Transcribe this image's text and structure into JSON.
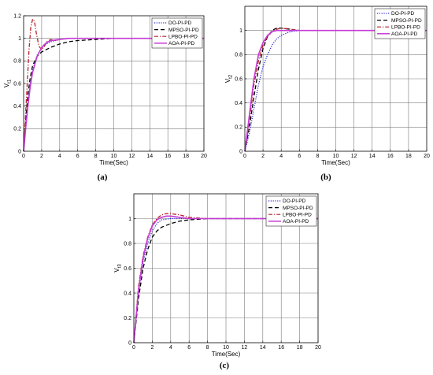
{
  "chart_data": [
    {
      "type": "line",
      "caption": "(a)",
      "xlabel": "Time(Sec)",
      "ylabel": "V_t1",
      "xlim": [
        0,
        20
      ],
      "ylim": [
        0,
        1.2
      ],
      "xticks": [
        0,
        2,
        4,
        6,
        8,
        10,
        12,
        14,
        16,
        18,
        20
      ],
      "yticks": [
        0,
        0.2,
        0.4,
        0.6,
        0.8,
        1,
        1.2
      ],
      "legend_position": "top-right",
      "series": [
        {
          "name": "DO-PI-PD",
          "color": "#2b2bd9",
          "style": "dotted",
          "x": [
            0,
            0.25,
            0.5,
            0.75,
            1,
            1.5,
            2,
            2.5,
            3,
            4,
            5,
            6,
            8,
            10,
            14,
            20
          ],
          "y": [
            0,
            0.25,
            0.45,
            0.6,
            0.72,
            0.85,
            0.91,
            0.95,
            0.97,
            0.99,
            1.0,
            1.0,
            1.0,
            1.0,
            1.0,
            1.0
          ]
        },
        {
          "name": "MPSO-PI-PD",
          "color": "#000000",
          "style": "dashed",
          "x": [
            0,
            0.25,
            0.5,
            0.75,
            1,
            1.5,
            2,
            3,
            4,
            5,
            6,
            8,
            10,
            14,
            20
          ],
          "y": [
            0,
            0.3,
            0.52,
            0.66,
            0.76,
            0.84,
            0.88,
            0.92,
            0.95,
            0.97,
            0.98,
            0.99,
            1.0,
            1.0,
            1.0
          ]
        },
        {
          "name": "LPBO-PI-PD",
          "color": "#b5202a",
          "style": "dashdot",
          "x": [
            0,
            0.3,
            0.6,
            0.8,
            1.0,
            1.2,
            1.4,
            1.7,
            2.0,
            2.3,
            2.6,
            3.0,
            3.5,
            4,
            5,
            6,
            8,
            10,
            14,
            20
          ],
          "y": [
            0,
            0.45,
            0.9,
            1.1,
            1.17,
            1.15,
            1.05,
            0.93,
            0.9,
            0.93,
            0.97,
            0.99,
            0.98,
            0.99,
            1.0,
            1.0,
            1.0,
            1.0,
            1.0,
            1.0
          ]
        },
        {
          "name": "AOA-PI-PD",
          "color": "#c63bd6",
          "style": "solid",
          "x": [
            0,
            0.25,
            0.5,
            0.75,
            1,
            1.5,
            2,
            2.5,
            3,
            4,
            5,
            6,
            8,
            10,
            14,
            20
          ],
          "y": [
            0,
            0.22,
            0.42,
            0.58,
            0.7,
            0.84,
            0.92,
            0.96,
            0.98,
            0.99,
            1.0,
            1.0,
            1.0,
            1.0,
            1.0,
            1.0
          ]
        }
      ]
    },
    {
      "type": "line",
      "caption": "(b)",
      "xlabel": "Time(Sec)",
      "ylabel": "V_t2",
      "xlim": [
        0,
        20
      ],
      "ylim": [
        0,
        1.2
      ],
      "xticks": [
        0,
        2,
        4,
        6,
        8,
        10,
        12,
        14,
        16,
        18,
        20
      ],
      "yticks": [
        0,
        0.2,
        0.4,
        0.6,
        0.8,
        1
      ],
      "legend_position": "top-right",
      "series": [
        {
          "name": "DO-PI-PD",
          "color": "#2b2bd9",
          "style": "dotted",
          "x": [
            0,
            0.5,
            1,
            1.5,
            2,
            2.5,
            3,
            3.5,
            4,
            5,
            6,
            8,
            10,
            14,
            20
          ],
          "y": [
            0,
            0.15,
            0.35,
            0.55,
            0.7,
            0.8,
            0.88,
            0.93,
            0.96,
            0.99,
            1.0,
            1.0,
            1.0,
            1.0,
            1.0
          ]
        },
        {
          "name": "MPSO-PI-PD",
          "color": "#000000",
          "style": "dashed",
          "x": [
            0,
            0.5,
            1,
            1.5,
            2,
            2.5,
            3,
            3.5,
            4,
            5,
            6,
            8,
            10,
            14,
            20
          ],
          "y": [
            0,
            0.2,
            0.45,
            0.68,
            0.85,
            0.95,
            1.0,
            1.02,
            1.02,
            1.01,
            1.0,
            1.0,
            1.0,
            1.0,
            1.0
          ]
        },
        {
          "name": "LPBO-PI-PD",
          "color": "#b5202a",
          "style": "dashdot",
          "x": [
            0,
            0.5,
            1,
            1.5,
            2,
            2.5,
            3,
            3.5,
            4,
            5,
            6,
            8,
            10,
            14,
            20
          ],
          "y": [
            0,
            0.25,
            0.55,
            0.75,
            0.88,
            0.95,
            0.99,
            1.01,
            1.02,
            1.01,
            1.0,
            1.0,
            1.0,
            1.0,
            1.0
          ]
        },
        {
          "name": "AOA-PI-PD",
          "color": "#c63bd6",
          "style": "solid",
          "x": [
            0,
            0.5,
            1,
            1.5,
            2,
            2.5,
            3,
            3.5,
            4,
            5,
            6,
            8,
            10,
            14,
            20
          ],
          "y": [
            0,
            0.3,
            0.6,
            0.8,
            0.9,
            0.96,
            0.99,
            1.0,
            1.0,
            1.0,
            1.0,
            1.0,
            1.0,
            1.0,
            1.0
          ]
        }
      ]
    },
    {
      "type": "line",
      "caption": "(c)",
      "xlabel": "Time(Sec)",
      "ylabel": "V_t3",
      "xlim": [
        0,
        20
      ],
      "ylim": [
        0,
        1.2
      ],
      "xticks": [
        0,
        2,
        4,
        6,
        8,
        10,
        12,
        14,
        16,
        18,
        20
      ],
      "yticks": [
        0,
        0.2,
        0.4,
        0.6,
        0.8,
        1
      ],
      "legend_position": "top-right",
      "series": [
        {
          "name": "DO-PI-PD",
          "color": "#2b2bd9",
          "style": "dotted",
          "x": [
            0,
            0.5,
            1,
            1.5,
            2,
            2.5,
            3,
            4,
            5,
            6,
            8,
            10,
            14,
            20
          ],
          "y": [
            0,
            0.4,
            0.65,
            0.8,
            0.9,
            0.96,
            0.99,
            1.0,
            1.0,
            1.0,
            1.0,
            1.0,
            1.0,
            1.0
          ]
        },
        {
          "name": "MPSO-PI-PD",
          "color": "#000000",
          "style": "dashed",
          "x": [
            0,
            0.5,
            1,
            1.5,
            2,
            2.5,
            3,
            4,
            5,
            6,
            8,
            10,
            14,
            20
          ],
          "y": [
            0,
            0.35,
            0.6,
            0.75,
            0.85,
            0.9,
            0.93,
            0.96,
            0.98,
            0.99,
            1.0,
            1.0,
            1.0,
            1.0
          ]
        },
        {
          "name": "LPBO-PI-PD",
          "color": "#b5202a",
          "style": "dashdot",
          "x": [
            0,
            0.5,
            1,
            1.5,
            2,
            2.5,
            3,
            3.5,
            4,
            5,
            6,
            8,
            10,
            14,
            20
          ],
          "y": [
            0,
            0.45,
            0.7,
            0.85,
            0.95,
            1.0,
            1.03,
            1.04,
            1.04,
            1.03,
            1.01,
            1.0,
            1.0,
            1.0,
            1.0
          ]
        },
        {
          "name": "AOA-PI-PD",
          "color": "#c63bd6",
          "style": "solid",
          "x": [
            0,
            0.5,
            1,
            1.5,
            2,
            2.5,
            3,
            3.5,
            4,
            5,
            6,
            8,
            10,
            14,
            20
          ],
          "y": [
            0,
            0.42,
            0.68,
            0.84,
            0.94,
            0.99,
            1.01,
            1.02,
            1.02,
            1.01,
            1.0,
            1.0,
            1.0,
            1.0,
            1.0
          ]
        }
      ]
    }
  ]
}
